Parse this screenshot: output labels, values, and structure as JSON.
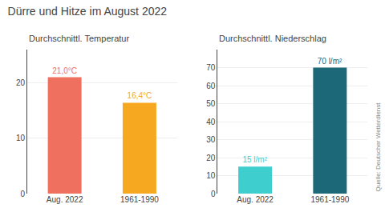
{
  "title": "Dürre und Hitze im August 2022",
  "annotations": [
    "Quelle: Deutscher Wetterdienst"
  ],
  "chart_data": [
    {
      "type": "bar",
      "title": "Durchschnittl. Temperatur",
      "categories": [
        "Aug. 2022",
        "1961-1990"
      ],
      "values": [
        21.0,
        16.4
      ],
      "value_labels": [
        "21,0°C",
        "16,4°C"
      ],
      "data_labels": true,
      "colors": [
        "#f07060",
        "#f5a820"
      ],
      "ylim": [
        0,
        26
      ],
      "yticks": [
        0,
        10,
        20
      ],
      "grid": true
    },
    {
      "type": "bar",
      "title": "Durchschnittl. Niederschlag",
      "categories": [
        "Aug. 2022",
        "1961-1990"
      ],
      "values": [
        15,
        70
      ],
      "value_labels": [
        "15 l/m²",
        "70 l/m²"
      ],
      "data_labels": true,
      "colors": [
        "#3ecece",
        "#1c6878"
      ],
      "ylim": [
        0,
        80
      ],
      "yticks": [
        0,
        10,
        20,
        30,
        40,
        50,
        60,
        70
      ],
      "grid": true
    }
  ]
}
